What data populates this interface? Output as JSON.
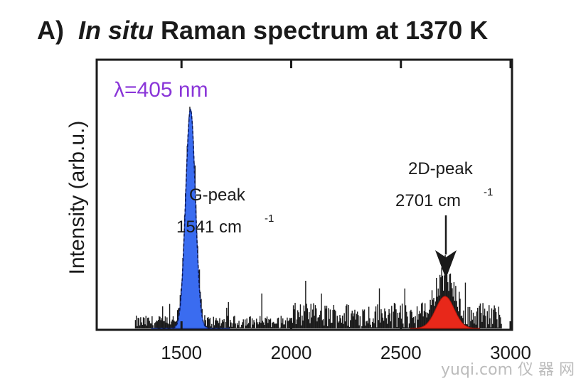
{
  "header": {
    "panel": "A)",
    "title_italic": "In situ",
    "title_rest": "Raman spectrum at 1370 K"
  },
  "chart_data": {
    "type": "line",
    "title": "In situ Raman spectrum at 1370 K",
    "xlabel": "",
    "ylabel": "Intensity (arb.u.)",
    "xlim": [
      1120,
      3000
    ],
    "ylim": [
      0,
      1
    ],
    "xticks": [
      "1500",
      "2000",
      "2500",
      "3000"
    ],
    "grid": false,
    "annotations": {
      "wavelength": "λ=405 nm",
      "g_peak_name": "G-peak",
      "g_peak_pos": "1541 cm",
      "g_peak_sup": "-1",
      "d2_peak_name": "2D-peak",
      "d2_peak_pos": "2701 cm",
      "d2_peak_sup": "-1"
    },
    "series": [
      {
        "name": "G-peak fit",
        "color": "#3a6cf0",
        "center": 1541,
        "amplitude": 0.82,
        "sigma": 22
      },
      {
        "name": "2D-peak fit",
        "color": "#e8281a",
        "center": 2701,
        "amplitude": 0.12,
        "sigma": 42
      }
    ],
    "noise_region": [
      1290,
      2960
    ],
    "noise_level": 0.06
  },
  "colors": {
    "axis": "#1a1a1a",
    "g_peak": "#3a6cf0",
    "d2_peak": "#e8281a",
    "wavelength": "#8a36d8"
  },
  "watermark": "yuqi.com 仪 器 网"
}
